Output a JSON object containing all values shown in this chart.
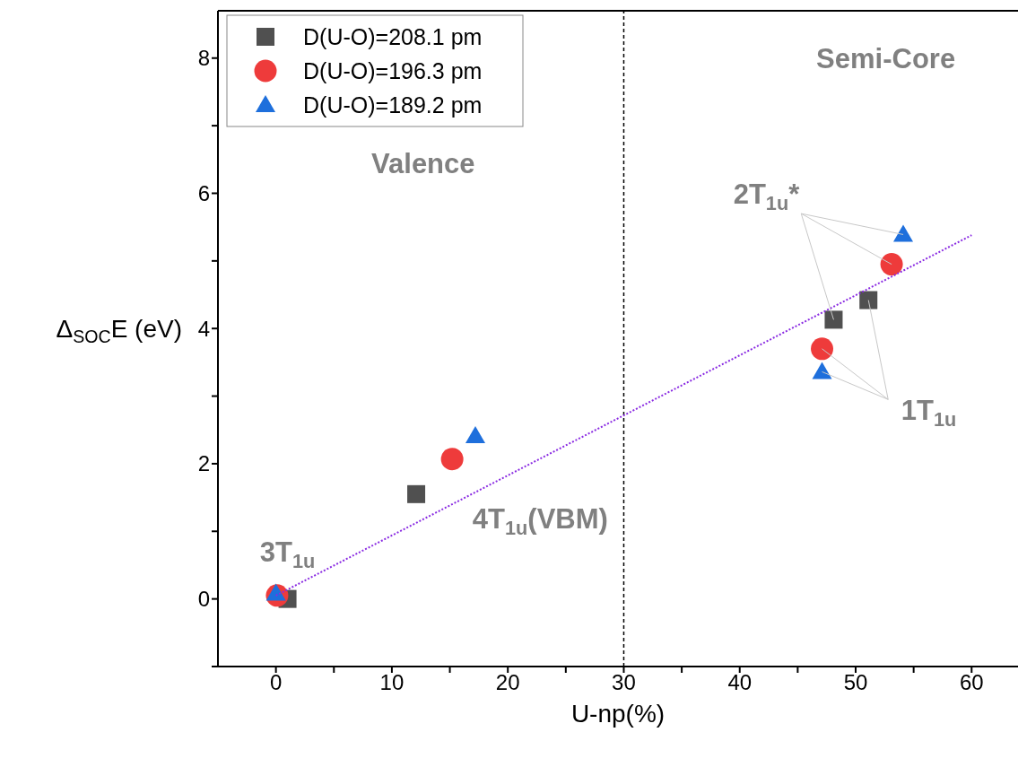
{
  "chart_data": {
    "type": "scatter",
    "xlabel": "U-np(%)",
    "ylabel": "Δ$_{SOC}$E (eV)",
    "xlim": [
      -5,
      64
    ],
    "ylim": [
      -1,
      8.7
    ],
    "xticks": [
      0,
      {
        "value": 5,
        "label": null
      },
      10,
      {
        "value": 15,
        "label": null
      },
      20,
      {
        "value": 25,
        "label": null
      },
      30,
      {
        "value": 35,
        "label": null
      },
      40,
      {
        "value": 45,
        "label": null
      },
      50,
      {
        "value": 55,
        "label": null
      },
      60
    ],
    "yticks": [
      {
        "value": -1,
        "label": null
      },
      0,
      {
        "value": 1,
        "label": null
      },
      2,
      {
        "value": 3,
        "label": null
      },
      4,
      {
        "value": 5,
        "label": null
      },
      6,
      {
        "value": 7,
        "label": null
      },
      8
    ],
    "series": [
      {
        "name": "D(U-O)=208.1 pm",
        "color": "#505050",
        "marker": "square",
        "x": [
          1,
          12.1,
          48.1,
          51.1
        ],
        "values": [
          0,
          1.55,
          4.13,
          4.42
        ]
      },
      {
        "name": "D(U-O)=196.3 pm",
        "color": "#ee3b3b",
        "marker": "circle",
        "x": [
          0.1,
          15.2,
          47.1,
          53.1
        ],
        "values": [
          0.05,
          2.07,
          3.7,
          4.95
        ]
      },
      {
        "name": "D(U-O)=189.2 pm",
        "color": "#1e6fdc",
        "marker": "triangle",
        "x": [
          0,
          17.2,
          47.1,
          54.1
        ],
        "values": [
          0.08,
          2.41,
          3.36,
          5.39
        ]
      },
      {
        "type": "line",
        "color": "#8a2be2",
        "line_style": "dotted",
        "marker": "none",
        "x": [
          0,
          60
        ],
        "values": [
          0.05,
          5.38
        ]
      }
    ],
    "ref_lines": [
      {
        "axis": "x",
        "value": 30,
        "color": "#000000",
        "line_style": "dashed"
      }
    ],
    "annotations": [
      "Valence",
      "Semi-Core",
      {
        "text": "2T$_{1u}$*",
        "x": 54.1,
        "y": 5.39
      },
      {
        "text": "1T$_{1u}$",
        "x": 51.1,
        "y": 4.42
      },
      "4T$_{1u}$(VBM)",
      "3T$_{1u}$"
    ],
    "legend": "top left"
  }
}
